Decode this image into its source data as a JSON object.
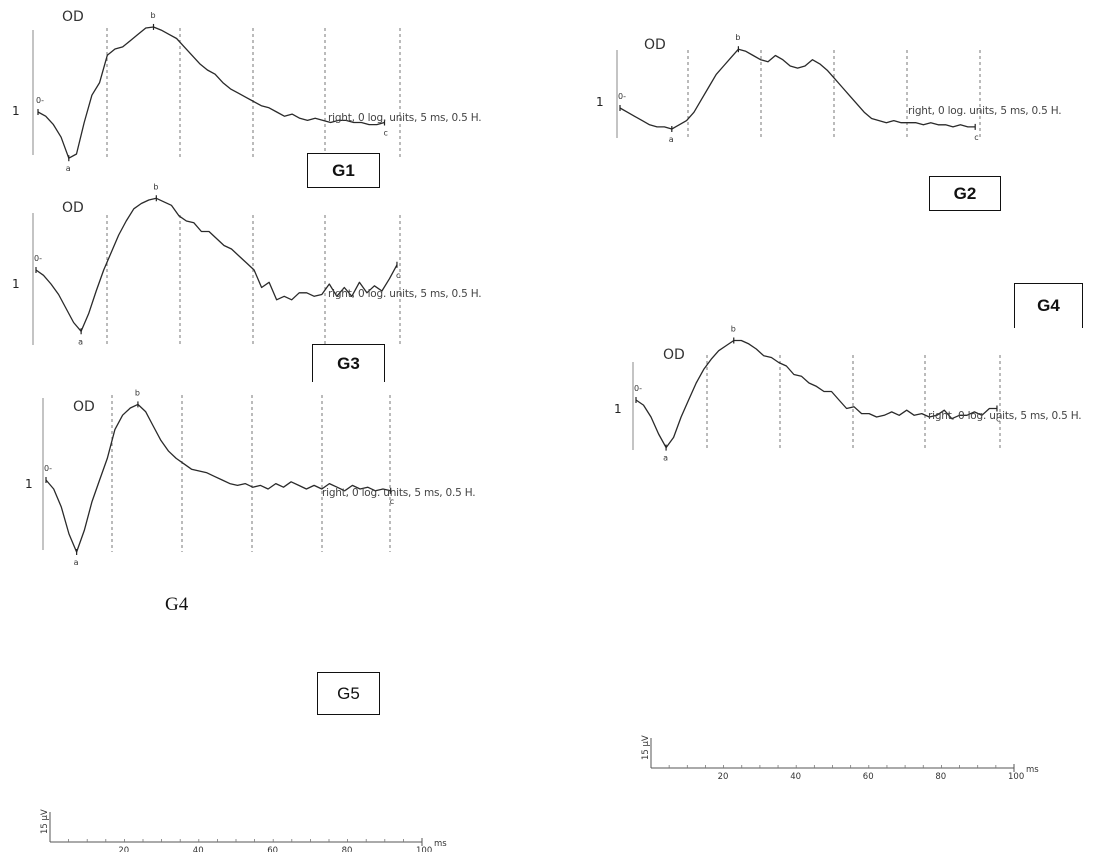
{
  "common": {
    "eye": "OD",
    "one_label": "1",
    "legend": "right, 0 log. units, 5 ms, 0.5 H.",
    "marker_o": "0-",
    "marker_a": "a",
    "marker_b": "b",
    "marker_c": "c"
  },
  "boxes": {
    "g1": "G1",
    "g2": "G2",
    "g3": "G3",
    "g4_right": "G4",
    "g4_caption": "G4",
    "g5": "G5"
  },
  "scale_bar": {
    "y_label": "15 µV",
    "unit": "ms",
    "ticks": [
      "20",
      "40",
      "60",
      "80",
      "100"
    ]
  },
  "chart_data": [
    {
      "type": "line",
      "panel": "G1",
      "ylabel": "1",
      "x": [
        0,
        2,
        4,
        6,
        8,
        10,
        12,
        14,
        16,
        18,
        20,
        22,
        24,
        26,
        28,
        30,
        32,
        34,
        36,
        38,
        40,
        42,
        44,
        46,
        48,
        50,
        52,
        54,
        56,
        58,
        60,
        62,
        64,
        66,
        68,
        70,
        72,
        74,
        76,
        78,
        80,
        82,
        84,
        86,
        88,
        90
      ],
      "y": [
        0,
        -2,
        -6,
        -12,
        -22,
        -20,
        -5,
        8,
        14,
        27,
        30,
        31,
        34,
        37,
        40,
        40.5,
        39,
        37,
        35,
        31,
        27,
        23,
        20,
        18,
        14,
        11,
        9,
        7,
        5,
        3,
        2,
        0,
        -2,
        -1,
        -3,
        -4,
        -3,
        -4,
        -5,
        -4,
        -4,
        -5,
        -5,
        -6,
        -6,
        -5
      ]
    },
    {
      "type": "line",
      "panel": "G2",
      "ylabel": "1",
      "x": [
        0,
        2,
        4,
        6,
        8,
        10,
        12,
        14,
        16,
        18,
        20,
        22,
        24,
        26,
        28,
        30,
        32,
        34,
        36,
        38,
        40,
        42,
        44,
        46,
        48,
        50,
        52,
        54,
        56,
        58,
        60,
        62,
        64,
        66,
        68,
        70,
        72,
        74,
        76,
        78,
        80,
        82,
        84,
        86,
        88,
        90,
        92,
        94,
        96
      ],
      "y": [
        0,
        -2,
        -4,
        -6,
        -8,
        -9,
        -9,
        -10,
        -8,
        -6,
        -2,
        4,
        10,
        16,
        20,
        24,
        28,
        27,
        25,
        23,
        22,
        25,
        23,
        20,
        19,
        20,
        23,
        21,
        18,
        14,
        10,
        6,
        2,
        -2,
        -5,
        -6,
        -7,
        -6,
        -7,
        -7,
        -7,
        -8,
        -7,
        -8,
        -8,
        -9,
        -8,
        -9,
        -9
      ]
    },
    {
      "type": "line",
      "panel": "G3",
      "ylabel": "1",
      "x": [
        0,
        2,
        4,
        6,
        8,
        10,
        12,
        14,
        16,
        18,
        20,
        22,
        24,
        26,
        28,
        30,
        32,
        34,
        36,
        38,
        40,
        42,
        44,
        46,
        48,
        50,
        52,
        54,
        56,
        58,
        60,
        62,
        64,
        66,
        68,
        70,
        72,
        74,
        76,
        78,
        80,
        82,
        84,
        86,
        88,
        90,
        92,
        94,
        96
      ],
      "y": [
        0,
        -3,
        -8,
        -14,
        -22,
        -30,
        -35,
        -25,
        -12,
        0,
        10,
        20,
        28,
        35,
        38,
        40,
        41,
        39,
        37,
        31,
        28,
        27,
        22,
        22,
        18,
        14,
        12,
        8,
        4,
        0,
        -10,
        -7,
        -17,
        -15,
        -17,
        -13,
        -13,
        -15,
        -14,
        -8,
        -15,
        -10,
        -15,
        -7,
        -13,
        -9,
        -12,
        -5,
        3
      ]
    },
    {
      "type": "line",
      "panel": "G4",
      "ylabel": "1",
      "x": [
        0,
        2,
        4,
        6,
        8,
        10,
        12,
        14,
        16,
        18,
        20,
        22,
        24,
        26,
        28,
        30,
        32,
        34,
        36,
        38,
        40,
        42,
        44,
        46,
        48,
        50,
        52,
        54,
        56,
        58,
        60,
        62,
        64,
        66,
        68,
        70,
        72,
        74,
        76,
        78,
        80,
        82,
        84,
        86,
        88,
        90,
        92,
        94,
        96
      ],
      "y": [
        0,
        -3,
        -10,
        -20,
        -28,
        -22,
        -10,
        0,
        10,
        18,
        24,
        29,
        32,
        35,
        35,
        33,
        30,
        26,
        25,
        22,
        20,
        15,
        14,
        10,
        8,
        5,
        5,
        0,
        -5,
        -4,
        -8,
        -8,
        -10,
        -9,
        -7,
        -9,
        -6,
        -9,
        -8,
        -10,
        -9,
        -6,
        -11,
        -9,
        -9,
        -7,
        -9,
        -5,
        -5
      ]
    },
    {
      "type": "line",
      "panel": "G5",
      "ylabel": "1",
      "x": [
        0,
        2,
        4,
        6,
        8,
        10,
        12,
        14,
        16,
        18,
        20,
        22,
        24,
        26,
        28,
        30,
        32,
        34,
        36,
        38,
        40,
        42,
        44,
        46,
        48,
        50,
        52,
        54,
        56,
        58,
        60,
        62,
        64,
        66,
        68,
        70,
        72,
        74,
        76,
        78,
        80,
        82,
        84,
        86,
        88,
        90
      ],
      "y": [
        0,
        -5,
        -15,
        -30,
        -40,
        -28,
        -12,
        0,
        12,
        28,
        36,
        40,
        42,
        38,
        30,
        22,
        16,
        12,
        9,
        6,
        5,
        4,
        2,
        0,
        -2,
        -3,
        -2,
        -4,
        -3,
        -5,
        -2,
        -4,
        -1,
        -3,
        -5,
        -3,
        -5,
        -2,
        -4,
        -6,
        -3,
        -5,
        -4,
        -6,
        -5,
        -6
      ]
    }
  ]
}
